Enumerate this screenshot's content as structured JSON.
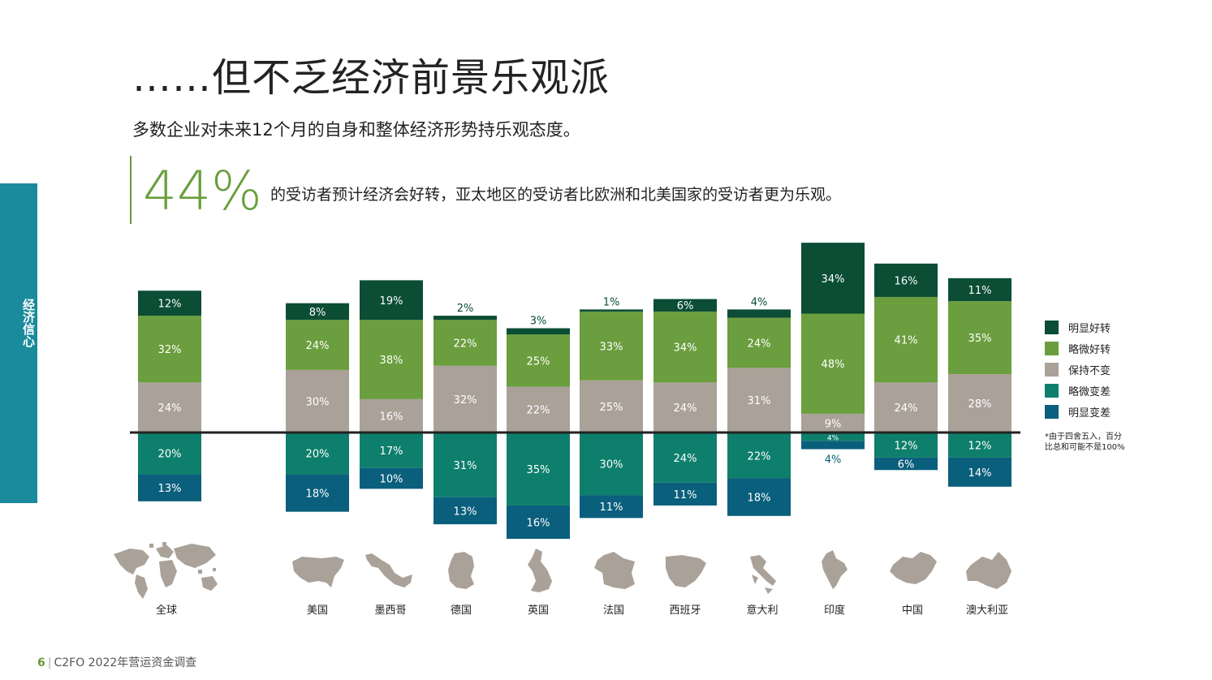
{
  "side_tab": {
    "label": "经济信心"
  },
  "header": {
    "title": "……但不乏经济前景乐观派",
    "subtitle": "多数企业对未来12个月的自身和整体经济形势持乐观态度。"
  },
  "highlight": {
    "stat": "44%",
    "text": "的受访者预计经济会好转，亚太地区的受访者比欧洲和北美国家的受访者更为乐观。"
  },
  "colors": {
    "much_better": "#0b4d35",
    "slightly_better": "#6b9e3e",
    "unchanged": "#aaa199",
    "slightly_worse": "#0e7f6c",
    "much_worse": "#0a5f7c",
    "accent_green": "#6a9e3c",
    "side_tab": "#1a8b9c",
    "map_gray": "#aaa199"
  },
  "chart_data": {
    "type": "bar",
    "subtype": "diverging-stacked",
    "categories": [
      "全球",
      "美国",
      "墨西哥",
      "德国",
      "英国",
      "法国",
      "西班牙",
      "意大利",
      "印度",
      "中国",
      "澳大利亚"
    ],
    "series": [
      {
        "name": "明显好转",
        "values": [
          12,
          8,
          19,
          2,
          3,
          1,
          6,
          4,
          34,
          16,
          11
        ],
        "labels": [
          "12%",
          "8%",
          "19%",
          "2%",
          "3%",
          "1%",
          "6%",
          "4%",
          "34%",
          "16%",
          "11%"
        ]
      },
      {
        "name": "略微好转",
        "values": [
          32,
          24,
          38,
          22,
          25,
          33,
          34,
          24,
          48,
          41,
          35
        ],
        "labels": [
          "32%",
          "24%",
          "38%",
          "22%",
          "25%",
          "33%",
          "34%",
          "24%",
          "48%",
          "41%",
          "35%"
        ]
      },
      {
        "name": "保持不变",
        "values": [
          24,
          30,
          16,
          32,
          22,
          25,
          24,
          31,
          9,
          24,
          28
        ],
        "labels": [
          "24%",
          "30%",
          "16%",
          "32%",
          "22%",
          "25%",
          "24%",
          "31%",
          "9%",
          "24%",
          "28%"
        ]
      },
      {
        "name": "略微变差",
        "values": [
          20,
          20,
          17,
          31,
          35,
          30,
          24,
          22,
          4,
          12,
          12
        ],
        "labels": [
          "20%",
          "20%",
          "17%",
          "31%",
          "35%",
          "30%",
          "24%",
          "22%",
          "4%",
          "12%",
          "12%"
        ]
      },
      {
        "name": "明显变差",
        "values": [
          13,
          18,
          10,
          13,
          16,
          11,
          11,
          18,
          4,
          6,
          14
        ],
        "labels": [
          "13%",
          "18%",
          "10%",
          "13%",
          "16%",
          "11%",
          "11%",
          "18%",
          "4%",
          "6%",
          "14%"
        ]
      }
    ],
    "legend_position": "right",
    "note": "*由于四舍五入，百分比总和可能不是100%"
  },
  "footer": {
    "page_number": "6",
    "text": "C2FO 2022年营运资金调查"
  }
}
